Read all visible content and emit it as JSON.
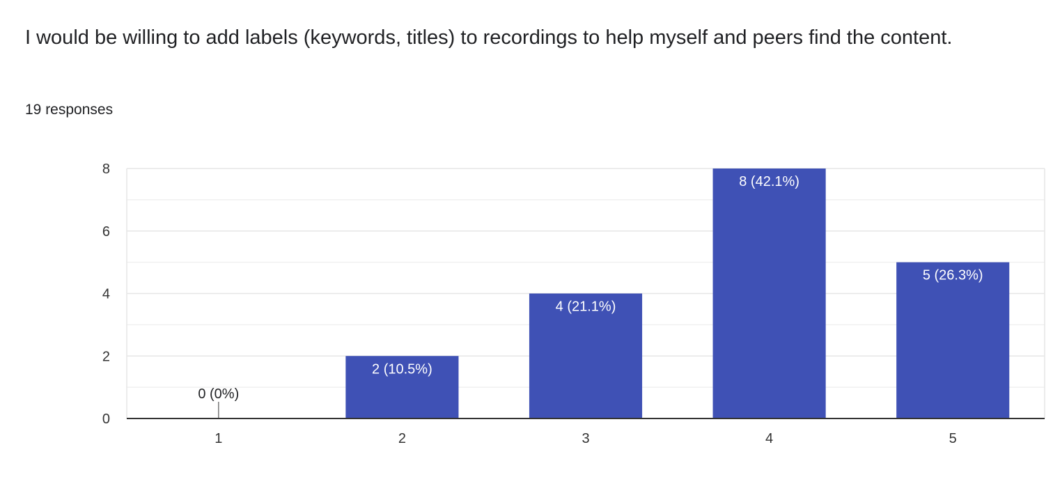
{
  "question": {
    "title": "I would be willing to add labels (keywords, titles) to recordings to help myself and peers find the content.",
    "responses": "19 responses"
  },
  "colors": {
    "bar": "#3f51b5",
    "bar_label_inside": "#ffffff",
    "bar_label_outside": "#202124",
    "grid": "#e6e6e6",
    "axis": "#333333"
  },
  "chart_data": {
    "type": "bar",
    "title": "",
    "xlabel": "",
    "ylabel": "",
    "categories": [
      "1",
      "2",
      "3",
      "4",
      "5"
    ],
    "values": [
      0,
      2,
      4,
      8,
      5
    ],
    "data_labels": [
      "0 (0%)",
      "2 (10.5%)",
      "4 (21.1%)",
      "8 (42.1%)",
      "5 (26.3%)"
    ],
    "ylim": [
      0,
      8
    ],
    "yticks": [
      0,
      2,
      4,
      6,
      8
    ],
    "minor_gridlines": [
      1,
      3,
      5,
      7
    ],
    "grid": true,
    "legend": "none"
  }
}
